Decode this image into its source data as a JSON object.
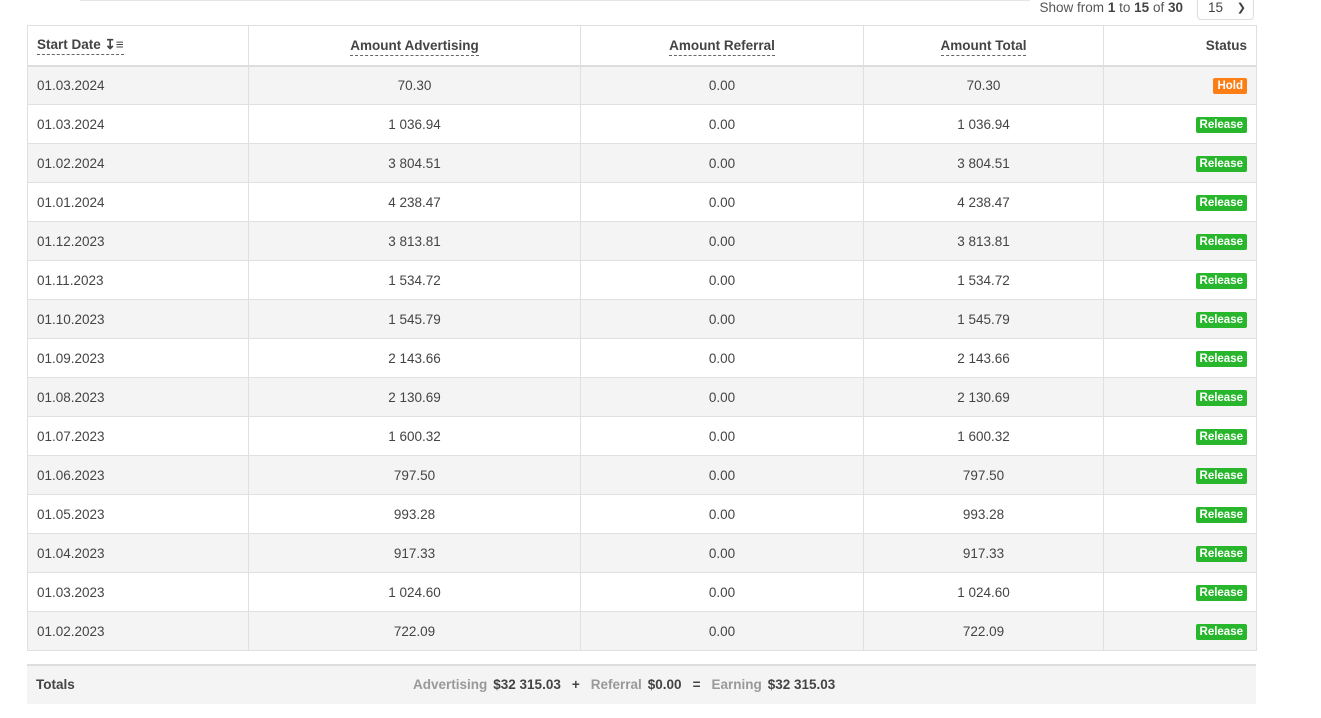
{
  "pager": {
    "prefix": "Show from",
    "from": "1",
    "to_label": "to",
    "to": "15",
    "of_label": "of",
    "total": "30",
    "per_page": "15"
  },
  "columns": [
    "Start Date",
    "Amount Advertising",
    "Amount Referral",
    "Amount Total",
    "Status"
  ],
  "sort_icon": "sort-amount-down-icon",
  "status_colors": {
    "Hold": "#fd7e14",
    "Release": "#28b62c"
  },
  "rows": [
    {
      "date": "01.03.2024",
      "adv": "70.30",
      "ref": "0.00",
      "total": "70.30",
      "status": "Hold"
    },
    {
      "date": "01.03.2024",
      "adv": "1 036.94",
      "ref": "0.00",
      "total": "1 036.94",
      "status": "Release"
    },
    {
      "date": "01.02.2024",
      "adv": "3 804.51",
      "ref": "0.00",
      "total": "3 804.51",
      "status": "Release"
    },
    {
      "date": "01.01.2024",
      "adv": "4 238.47",
      "ref": "0.00",
      "total": "4 238.47",
      "status": "Release"
    },
    {
      "date": "01.12.2023",
      "adv": "3 813.81",
      "ref": "0.00",
      "total": "3 813.81",
      "status": "Release"
    },
    {
      "date": "01.11.2023",
      "adv": "1 534.72",
      "ref": "0.00",
      "total": "1 534.72",
      "status": "Release"
    },
    {
      "date": "01.10.2023",
      "adv": "1 545.79",
      "ref": "0.00",
      "total": "1 545.79",
      "status": "Release"
    },
    {
      "date": "01.09.2023",
      "adv": "2 143.66",
      "ref": "0.00",
      "total": "2 143.66",
      "status": "Release"
    },
    {
      "date": "01.08.2023",
      "adv": "2 130.69",
      "ref": "0.00",
      "total": "2 130.69",
      "status": "Release"
    },
    {
      "date": "01.07.2023",
      "adv": "1 600.32",
      "ref": "0.00",
      "total": "1 600.32",
      "status": "Release"
    },
    {
      "date": "01.06.2023",
      "adv": "797.50",
      "ref": "0.00",
      "total": "797.50",
      "status": "Release"
    },
    {
      "date": "01.05.2023",
      "adv": "993.28",
      "ref": "0.00",
      "total": "993.28",
      "status": "Release"
    },
    {
      "date": "01.04.2023",
      "adv": "917.33",
      "ref": "0.00",
      "total": "917.33",
      "status": "Release"
    },
    {
      "date": "01.03.2023",
      "adv": "1 024.60",
      "ref": "0.00",
      "total": "1 024.60",
      "status": "Release"
    },
    {
      "date": "01.02.2023",
      "adv": "722.09",
      "ref": "0.00",
      "total": "722.09",
      "status": "Release"
    }
  ],
  "totals": {
    "label": "Totals",
    "adv_label": "Advertising",
    "adv": "$32 315.03",
    "plus": "+",
    "ref_label": "Referral",
    "ref": "$0.00",
    "eq": "=",
    "earn_label": "Earning",
    "earn": "$32 315.03"
  }
}
